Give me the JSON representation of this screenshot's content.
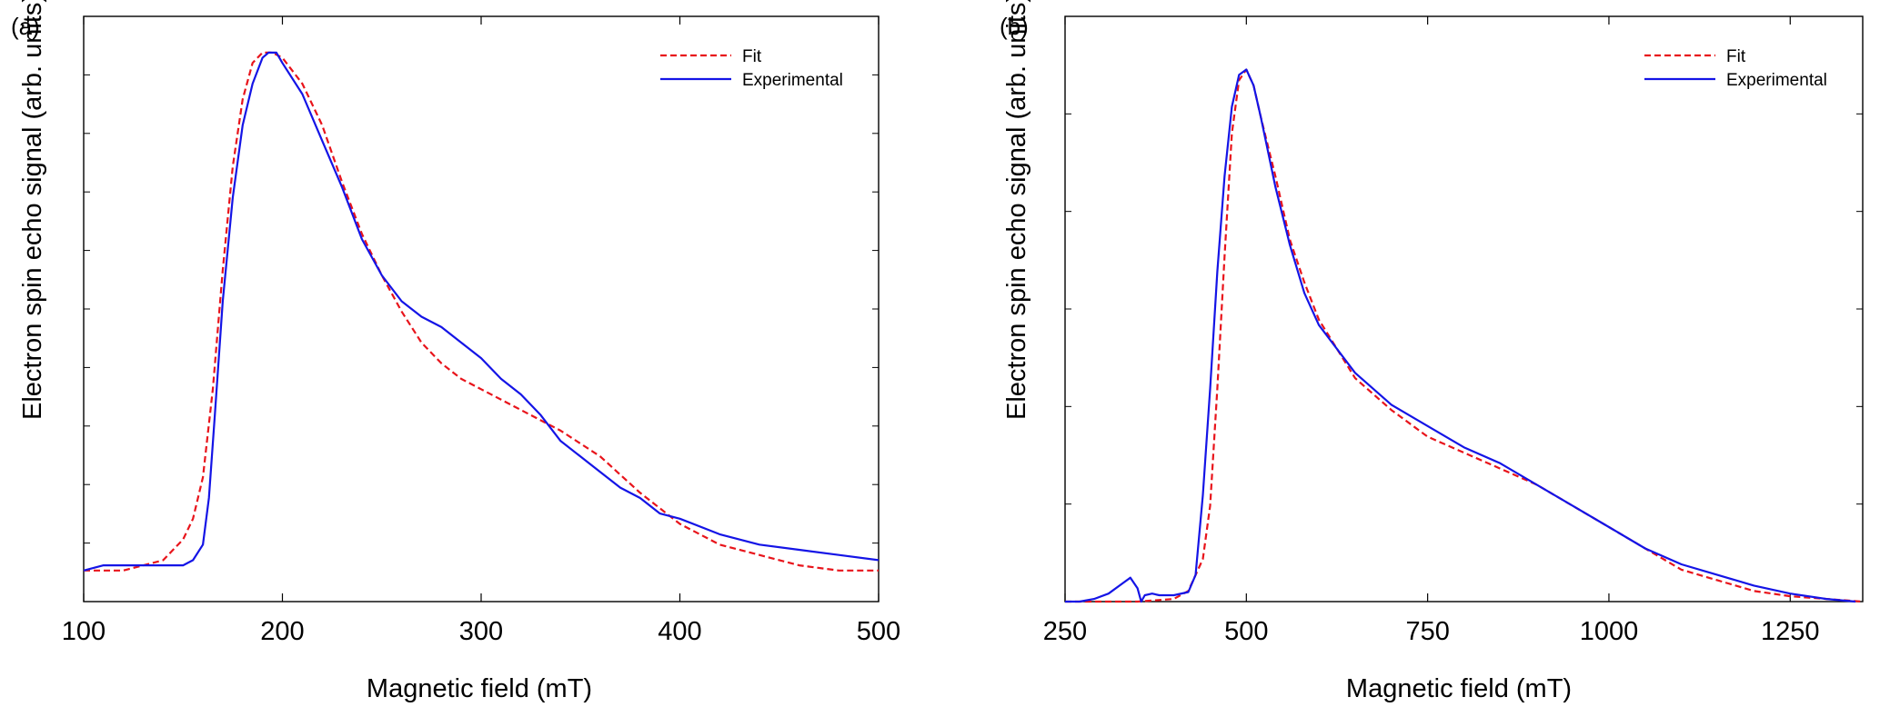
{
  "chart_data": [
    {
      "type": "line",
      "panel_label": "(a)",
      "xlabel": "Magnetic field (mT)",
      "ylabel": "Electron spin echo signal (arb. units)",
      "xlim": [
        100,
        500
      ],
      "ylim": [
        -0.06,
        1.07
      ],
      "xticks": [
        100,
        200,
        300,
        400,
        500
      ],
      "xtick_labels": [
        "100",
        "200",
        "300",
        "400",
        "500"
      ],
      "yticks_count": 10,
      "ytick_labels_shown": false,
      "grid": false,
      "legend": {
        "placement": "top-right",
        "entries": [
          "Fit",
          "Experimental"
        ]
      },
      "series": [
        {
          "name": "Fit",
          "color": "#e8141b",
          "style": "dashed",
          "x": [
            100,
            120,
            140,
            150,
            155,
            160,
            165,
            170,
            175,
            180,
            185,
            190,
            195,
            200,
            210,
            220,
            230,
            240,
            250,
            260,
            270,
            280,
            290,
            300,
            320,
            340,
            360,
            380,
            400,
            420,
            440,
            460,
            480,
            500
          ],
          "y": [
            0.0,
            0.0,
            0.02,
            0.06,
            0.1,
            0.18,
            0.35,
            0.58,
            0.78,
            0.91,
            0.98,
            1.0,
            1.0,
            0.99,
            0.94,
            0.86,
            0.75,
            0.65,
            0.57,
            0.5,
            0.44,
            0.4,
            0.37,
            0.35,
            0.31,
            0.27,
            0.22,
            0.15,
            0.09,
            0.05,
            0.03,
            0.01,
            0.0,
            0.0
          ]
        },
        {
          "name": "Experimental",
          "color": "#1414e6",
          "style": "solid",
          "x": [
            100,
            110,
            120,
            130,
            140,
            150,
            155,
            160,
            163,
            166,
            170,
            175,
            180,
            185,
            190,
            193,
            197,
            200,
            210,
            220,
            230,
            240,
            250,
            260,
            270,
            280,
            290,
            300,
            310,
            320,
            330,
            340,
            350,
            360,
            370,
            380,
            390,
            400,
            420,
            440,
            460,
            480,
            500
          ],
          "y": [
            0.0,
            0.01,
            0.01,
            0.01,
            0.01,
            0.01,
            0.02,
            0.05,
            0.14,
            0.3,
            0.52,
            0.72,
            0.86,
            0.94,
            0.99,
            1.0,
            1.0,
            0.98,
            0.92,
            0.83,
            0.74,
            0.64,
            0.57,
            0.52,
            0.49,
            0.47,
            0.44,
            0.41,
            0.37,
            0.34,
            0.3,
            0.25,
            0.22,
            0.19,
            0.16,
            0.14,
            0.11,
            0.1,
            0.07,
            0.05,
            0.04,
            0.03,
            0.02
          ]
        }
      ]
    },
    {
      "type": "line",
      "panel_label": "(b)",
      "xlabel": "Magnetic field (mT)",
      "ylabel": "Electron spin echo signal (arb. units)",
      "xlim": [
        250,
        1350
      ],
      "ylim": [
        0.0,
        1.1
      ],
      "xticks": [
        250,
        500,
        750,
        1000,
        1250
      ],
      "xtick_labels": [
        "250",
        "500",
        "750",
        "1000",
        "1250"
      ],
      "yticks_count": 6,
      "ytick_labels_shown": false,
      "grid": false,
      "legend": {
        "placement": "top-right",
        "entries": [
          "Fit",
          "Experimental"
        ]
      },
      "series": [
        {
          "name": "Fit",
          "color": "#e8141b",
          "style": "dashed",
          "x": [
            250,
            300,
            350,
            400,
            420,
            440,
            450,
            460,
            470,
            480,
            490,
            500,
            510,
            520,
            540,
            560,
            580,
            600,
            650,
            700,
            750,
            800,
            850,
            900,
            950,
            1000,
            1050,
            1100,
            1150,
            1200,
            1250,
            1300,
            1350
          ],
          "y": [
            0.0,
            0.0,
            0.0,
            0.005,
            0.02,
            0.08,
            0.18,
            0.4,
            0.65,
            0.88,
            0.98,
            1.0,
            0.97,
            0.91,
            0.8,
            0.68,
            0.6,
            0.53,
            0.42,
            0.36,
            0.31,
            0.28,
            0.25,
            0.22,
            0.18,
            0.14,
            0.1,
            0.06,
            0.04,
            0.02,
            0.01,
            0.005,
            0.0
          ]
        },
        {
          "name": "Experimental",
          "color": "#1414e6",
          "style": "solid",
          "x": [
            250,
            270,
            290,
            310,
            330,
            340,
            350,
            355,
            360,
            370,
            380,
            400,
            420,
            430,
            440,
            450,
            460,
            470,
            480,
            490,
            500,
            510,
            520,
            540,
            560,
            580,
            600,
            650,
            700,
            750,
            800,
            850,
            900,
            950,
            1000,
            1050,
            1100,
            1150,
            1200,
            1250,
            1300,
            1340
          ],
          "y": [
            0.0,
            0.0,
            0.005,
            0.015,
            0.035,
            0.045,
            0.025,
            0.0,
            0.012,
            0.015,
            0.012,
            0.012,
            0.018,
            0.05,
            0.2,
            0.4,
            0.62,
            0.8,
            0.93,
            0.99,
            1.0,
            0.97,
            0.91,
            0.78,
            0.67,
            0.58,
            0.52,
            0.43,
            0.37,
            0.33,
            0.29,
            0.26,
            0.22,
            0.18,
            0.14,
            0.1,
            0.07,
            0.05,
            0.03,
            0.015,
            0.005,
            0.0
          ]
        }
      ]
    }
  ]
}
